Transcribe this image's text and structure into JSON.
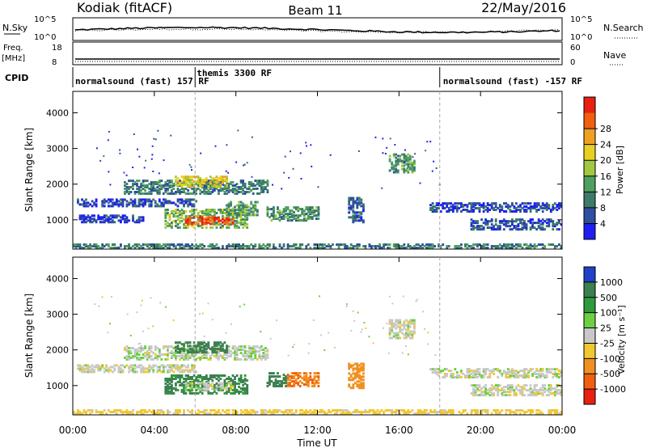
{
  "header": {
    "station": "Kodiak (fitACF)",
    "beam": "Beam 11",
    "date": "22/May/2016"
  },
  "status_panels": {
    "nsky_label": "N.Sky",
    "nsearch_label": "N.Search",
    "nsky_ticks": [
      "10^5",
      "10^0"
    ],
    "nsearch_ticks": [
      "10^5",
      "10^0"
    ],
    "freq_label_line1": "Freq.",
    "freq_label_line2": "[MHz]",
    "freq_ticks": [
      "18",
      "8"
    ],
    "nave_label": "Nave",
    "nave_ticks": [
      "60",
      "0"
    ],
    "cpid_label": "CPID",
    "cpid_segments": [
      {
        "start_h": 0,
        "end_h": 6,
        "text": "normalsound (fast) 157 RF"
      },
      {
        "start_h": 6,
        "end_h": 18,
        "text": "themis 3300 RF"
      },
      {
        "start_h": 18,
        "end_h": 24,
        "text": "normalsound (fast) -157 RF"
      }
    ]
  },
  "axes": {
    "x_ticks": [
      "00:00",
      "04:00",
      "08:00",
      "12:00",
      "16:00",
      "20:00",
      "00:00"
    ],
    "xlabel": "Time UT",
    "ylabel": "Slant Range [km]",
    "y_ticks": [
      "1000",
      "2000",
      "3000",
      "4000"
    ]
  },
  "colorbars": {
    "power": {
      "label": "Power [dB]",
      "ticks": [
        "4",
        "8",
        "12",
        "16",
        "20",
        "24",
        "28"
      ],
      "colors": [
        "#1f1ff0",
        "#2f4fa0",
        "#3c7a6a",
        "#4fa060",
        "#a0c840",
        "#e8d020",
        "#f0a020",
        "#f06010",
        "#e82010"
      ]
    },
    "velocity": {
      "label": "Velocity [m s⁻¹]",
      "ticks": [
        "1000",
        "500",
        "100",
        "25",
        "-25",
        "-100",
        "-500",
        "-1000"
      ],
      "colors": [
        "#2040c8",
        "#3c8050",
        "#2e9a3c",
        "#6cd040",
        "#c8c8c8",
        "#f0c830",
        "#f09020",
        "#f06010",
        "#e82010"
      ]
    }
  },
  "chart_data": {
    "type": "heatmap",
    "title": "Kodiak (fitACF) Beam 11 22/May/2016",
    "xlabel": "Time UT",
    "ylabel": "Slant Range [km]",
    "xlim_hours": [
      0,
      24
    ],
    "ylim_km": [
      180,
      4600
    ],
    "vertical_markers_hours": [
      6,
      18
    ],
    "power_regions": [
      {
        "t0": 0.2,
        "t1": 6.0,
        "r0": 1350,
        "r1": 1550,
        "db": 6
      },
      {
        "t0": 0.3,
        "t1": 3.5,
        "r0": 900,
        "r1": 1100,
        "db": 5
      },
      {
        "t0": 2.5,
        "t1": 9.5,
        "r0": 1700,
        "r1": 2100,
        "db": 10
      },
      {
        "t0": 5.0,
        "t1": 7.5,
        "r0": 1900,
        "r1": 2200,
        "db": 18
      },
      {
        "t0": 4.5,
        "t1": 8.5,
        "r0": 750,
        "r1": 1250,
        "db": 14
      },
      {
        "t0": 5.5,
        "t1": 7.8,
        "r0": 850,
        "r1": 1050,
        "db": 27
      },
      {
        "t0": 7.5,
        "t1": 9.0,
        "r0": 1100,
        "r1": 1500,
        "db": 12
      },
      {
        "t0": 9.5,
        "t1": 12.0,
        "r0": 950,
        "r1": 1350,
        "db": 11
      },
      {
        "t0": 13.5,
        "t1": 14.2,
        "r0": 900,
        "r1": 1600,
        "db": 8
      },
      {
        "t0": 15.5,
        "t1": 16.8,
        "r0": 2300,
        "r1": 2800,
        "db": 12
      },
      {
        "t0": 17.5,
        "t1": 24.0,
        "r0": 1200,
        "r1": 1450,
        "db": 6
      },
      {
        "t0": 19.5,
        "t1": 24.0,
        "r0": 700,
        "r1": 1000,
        "db": 7
      },
      {
        "t0": 0.0,
        "t1": 24.0,
        "r0": 180,
        "r1": 300,
        "db": 10
      }
    ],
    "velocity_regions": [
      {
        "t0": 0.2,
        "t1": 6.0,
        "r0": 1350,
        "r1": 1550,
        "v": 0
      },
      {
        "t0": 2.5,
        "t1": 9.5,
        "r0": 1700,
        "r1": 2100,
        "v": 10
      },
      {
        "t0": 5.0,
        "t1": 7.5,
        "r0": 1900,
        "r1": 2200,
        "v": 150
      },
      {
        "t0": 4.5,
        "t1": 8.5,
        "r0": 750,
        "r1": 1250,
        "v": 120
      },
      {
        "t0": 5.5,
        "t1": 7.8,
        "r0": 850,
        "r1": 1050,
        "v": 0
      },
      {
        "t0": 9.5,
        "t1": 10.5,
        "r0": 950,
        "r1": 1350,
        "v": 180
      },
      {
        "t0": 10.5,
        "t1": 12.0,
        "r0": 950,
        "r1": 1350,
        "v": -300
      },
      {
        "t0": 13.5,
        "t1": 14.2,
        "r0": 900,
        "r1": 1600,
        "v": -200
      },
      {
        "t0": 15.5,
        "t1": 16.8,
        "r0": 2300,
        "r1": 2800,
        "v": 0
      },
      {
        "t0": 17.5,
        "t1": 24.0,
        "r0": 1200,
        "r1": 1450,
        "v": 0
      },
      {
        "t0": 19.5,
        "t1": 24.0,
        "r0": 700,
        "r1": 1000,
        "v": 0
      },
      {
        "t0": 0.0,
        "t1": 24.0,
        "r0": 180,
        "r1": 300,
        "v": -50
      }
    ]
  }
}
